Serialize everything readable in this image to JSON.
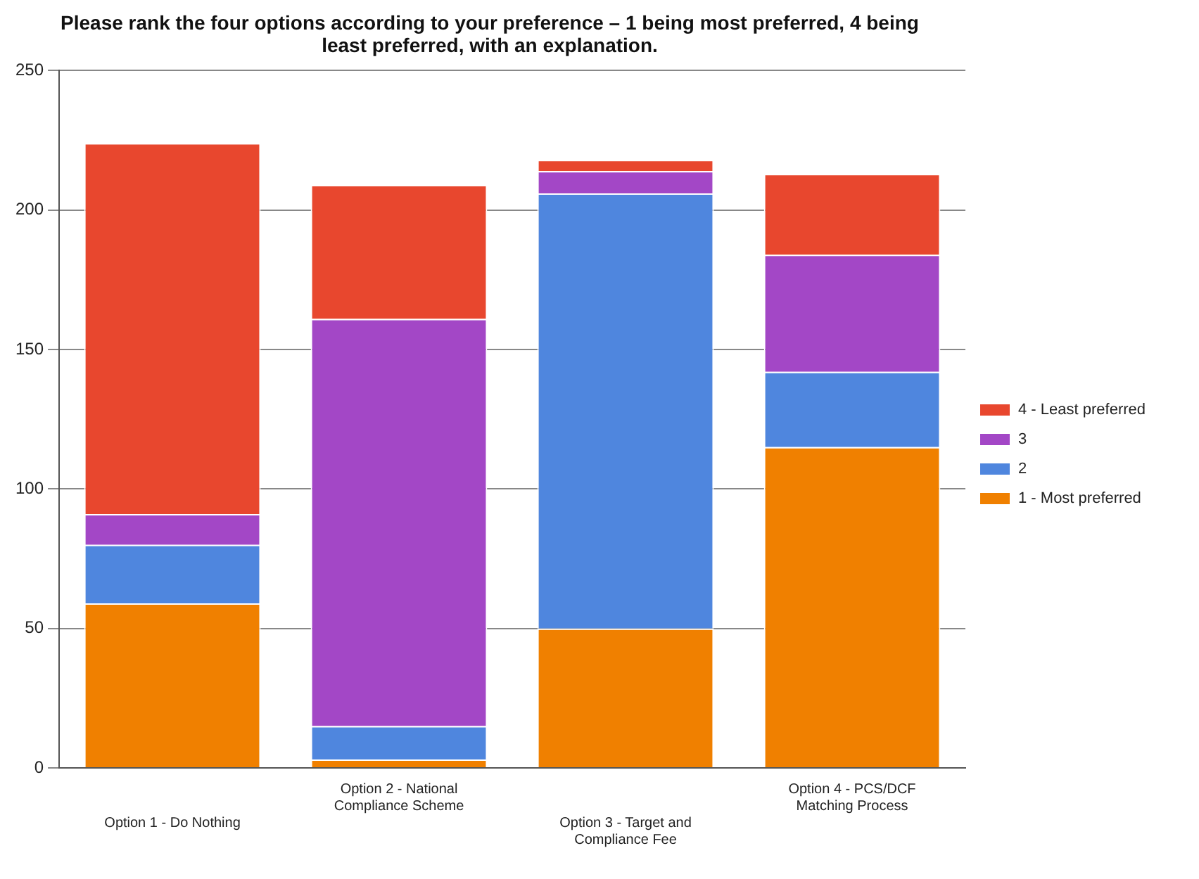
{
  "chart_data": {
    "type": "bar",
    "title": "Please rank the four options according to your preference – 1 being most preferred, 4 being least preferred, with an explanation.",
    "categories": [
      "Option 1 - Do Nothing",
      "Option 2 - National Compliance Scheme",
      "Option 3 - Target and Compliance Fee",
      "Option 4 - PCS/DCF Matching Process"
    ],
    "stacked": true,
    "series": [
      {
        "name": "1 - Most preferred",
        "color": "#f08000",
        "values": [
          59,
          3,
          50,
          115
        ]
      },
      {
        "name": "2",
        "color": "#4f86de",
        "values": [
          21,
          12,
          156,
          27
        ]
      },
      {
        "name": "3",
        "color": "#a347c6",
        "values": [
          11,
          146,
          8,
          42
        ]
      },
      {
        "name": "4 - Least preferred",
        "color": "#e8472e",
        "values": [
          133,
          48,
          4,
          29
        ]
      }
    ],
    "ylim": [
      0,
      250
    ],
    "yticks": [
      0,
      50,
      100,
      150,
      200,
      250
    ],
    "grid": "y",
    "legend": "right"
  }
}
